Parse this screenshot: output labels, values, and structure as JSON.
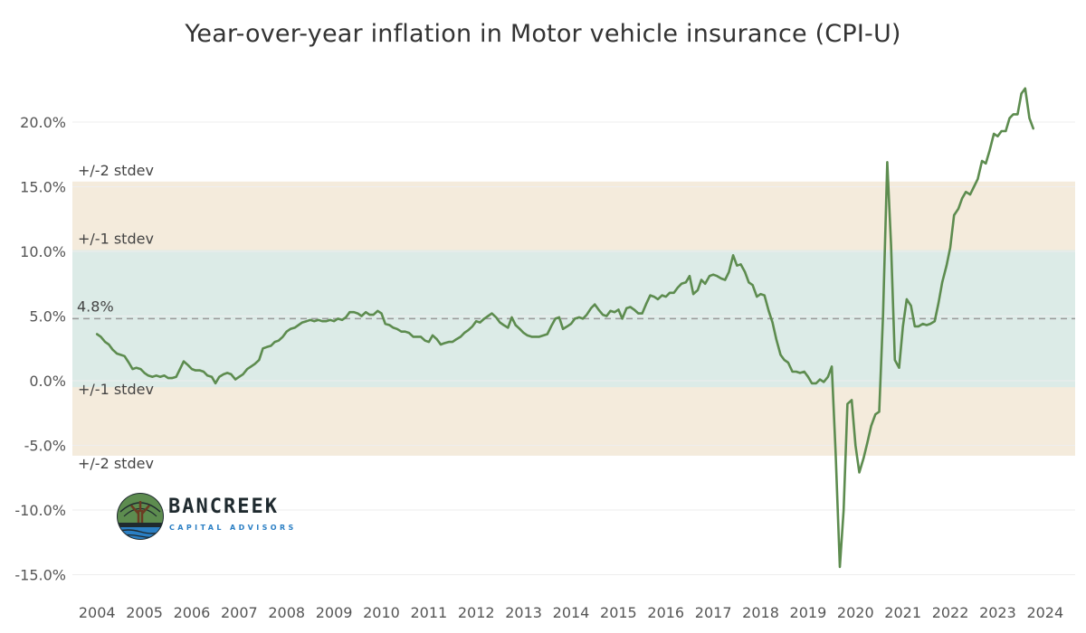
{
  "title": "Year-over-year inflation in Motor vehicle insurance (CPI-U)",
  "logo": {
    "name": "BANCREEK",
    "subtitle": "CAPITAL ADVISORS",
    "icon": "tree-river-icon"
  },
  "colors": {
    "line": "#5d8c4f",
    "band_1sd": "#dcebe7",
    "band_2sd": "#f4ebdc",
    "mean_line": "#999999",
    "grid": "#eeeeee"
  },
  "chart_data": {
    "type": "line",
    "title": "Year-over-year inflation in Motor vehicle insurance (CPI-U)",
    "xlabel": "",
    "ylabel": "",
    "ylim": [
      -16.5,
      24.5
    ],
    "xlim": [
      2004.0,
      2025.0
    ],
    "yticks": [
      {
        "value": 20,
        "label": "20.0%"
      },
      {
        "value": 15,
        "label": "15.0%"
      },
      {
        "value": 10,
        "label": "10.0%"
      },
      {
        "value": 5,
        "label": "5.0%"
      },
      {
        "value": 0,
        "label": "0.0%"
      },
      {
        "value": -5,
        "label": "-5.0%"
      },
      {
        "value": -10,
        "label": "-10.0%"
      },
      {
        "value": -15,
        "label": "-15.0%"
      }
    ],
    "xticks": [
      "2004",
      "2005",
      "2006",
      "2007",
      "2008",
      "2009",
      "2010",
      "2011",
      "2012",
      "2013",
      "2014",
      "2015",
      "2016",
      "2017",
      "2018",
      "2019",
      "2020",
      "2021",
      "2022",
      "2023",
      "2024"
    ],
    "mean": {
      "value": 4.8,
      "label": "4.8%"
    },
    "bands": [
      {
        "name": "2sd",
        "from": -5.8,
        "to": 15.4,
        "label_upper": "+/-2 stdev",
        "label_lower": "+/-2 stdev"
      },
      {
        "name": "1sd",
        "from": -0.5,
        "to": 10.1,
        "label_upper": "+/-1 stdev",
        "label_lower": "+/-1 stdev"
      }
    ],
    "grid": true,
    "series": [
      {
        "points": [
          [
            2004.5,
            3.6
          ],
          [
            2004.58,
            3.4
          ],
          [
            2004.67,
            3.0
          ],
          [
            2004.75,
            2.8
          ],
          [
            2004.83,
            2.4
          ],
          [
            2004.92,
            2.1
          ],
          [
            2005.0,
            2.0
          ],
          [
            2005.08,
            1.9
          ],
          [
            2005.17,
            1.4
          ],
          [
            2005.25,
            0.9
          ],
          [
            2005.33,
            1.0
          ],
          [
            2005.42,
            0.9
          ],
          [
            2005.5,
            0.6
          ],
          [
            2005.58,
            0.4
          ],
          [
            2005.67,
            0.3
          ],
          [
            2005.75,
            0.4
          ],
          [
            2005.83,
            0.3
          ],
          [
            2005.92,
            0.4
          ],
          [
            2006.0,
            0.2
          ],
          [
            2006.08,
            0.2
          ],
          [
            2006.17,
            0.3
          ],
          [
            2006.25,
            0.9
          ],
          [
            2006.33,
            1.5
          ],
          [
            2006.42,
            1.2
          ],
          [
            2006.5,
            0.9
          ],
          [
            2006.58,
            0.8
          ],
          [
            2006.67,
            0.8
          ],
          [
            2006.75,
            0.7
          ],
          [
            2006.83,
            0.4
          ],
          [
            2006.92,
            0.3
          ],
          [
            2007.0,
            -0.2
          ],
          [
            2007.08,
            0.3
          ],
          [
            2007.17,
            0.5
          ],
          [
            2007.25,
            0.6
          ],
          [
            2007.33,
            0.5
          ],
          [
            2007.42,
            0.1
          ],
          [
            2007.5,
            0.3
          ],
          [
            2007.58,
            0.5
          ],
          [
            2007.67,
            0.9
          ],
          [
            2007.75,
            1.1
          ],
          [
            2007.83,
            1.3
          ],
          [
            2007.92,
            1.6
          ],
          [
            2008.0,
            2.5
          ],
          [
            2008.08,
            2.6
          ],
          [
            2008.17,
            2.7
          ],
          [
            2008.25,
            3.0
          ],
          [
            2008.33,
            3.1
          ],
          [
            2008.42,
            3.4
          ],
          [
            2008.5,
            3.8
          ],
          [
            2008.58,
            4.0
          ],
          [
            2008.67,
            4.1
          ],
          [
            2008.75,
            4.3
          ],
          [
            2008.83,
            4.5
          ],
          [
            2008.92,
            4.6
          ],
          [
            2009.0,
            4.7
          ],
          [
            2009.08,
            4.6
          ],
          [
            2009.17,
            4.7
          ],
          [
            2009.25,
            4.6
          ],
          [
            2009.33,
            4.6
          ],
          [
            2009.42,
            4.7
          ],
          [
            2009.5,
            4.6
          ],
          [
            2009.58,
            4.8
          ],
          [
            2009.67,
            4.7
          ],
          [
            2009.75,
            4.9
          ],
          [
            2009.83,
            5.3
          ],
          [
            2009.92,
            5.3
          ],
          [
            2010.0,
            5.2
          ],
          [
            2010.08,
            5.0
          ],
          [
            2010.17,
            5.3
          ],
          [
            2010.25,
            5.1
          ],
          [
            2010.33,
            5.1
          ],
          [
            2010.42,
            5.4
          ],
          [
            2010.5,
            5.2
          ],
          [
            2010.58,
            4.4
          ],
          [
            2010.67,
            4.3
          ],
          [
            2010.75,
            4.1
          ],
          [
            2010.83,
            4.0
          ],
          [
            2010.92,
            3.8
          ],
          [
            2011.0,
            3.8
          ],
          [
            2011.08,
            3.7
          ],
          [
            2011.17,
            3.4
          ],
          [
            2011.25,
            3.4
          ],
          [
            2011.33,
            3.4
          ],
          [
            2011.42,
            3.1
          ],
          [
            2011.5,
            3.0
          ],
          [
            2011.58,
            3.5
          ],
          [
            2011.67,
            3.2
          ],
          [
            2011.75,
            2.8
          ],
          [
            2011.83,
            2.9
          ],
          [
            2011.92,
            3.0
          ],
          [
            2012.0,
            3.0
          ],
          [
            2012.08,
            3.2
          ],
          [
            2012.17,
            3.4
          ],
          [
            2012.25,
            3.7
          ],
          [
            2012.33,
            3.9
          ],
          [
            2012.42,
            4.2
          ],
          [
            2012.5,
            4.6
          ],
          [
            2012.58,
            4.5
          ],
          [
            2012.67,
            4.8
          ],
          [
            2012.75,
            5.0
          ],
          [
            2012.83,
            5.2
          ],
          [
            2012.92,
            4.9
          ],
          [
            2013.0,
            4.5
          ],
          [
            2013.08,
            4.3
          ],
          [
            2013.17,
            4.1
          ],
          [
            2013.25,
            4.9
          ],
          [
            2013.33,
            4.3
          ],
          [
            2013.42,
            4.0
          ],
          [
            2013.5,
            3.7
          ],
          [
            2013.58,
            3.5
          ],
          [
            2013.67,
            3.4
          ],
          [
            2013.75,
            3.4
          ],
          [
            2013.83,
            3.4
          ],
          [
            2013.92,
            3.5
          ],
          [
            2014.0,
            3.6
          ],
          [
            2014.08,
            4.2
          ],
          [
            2014.17,
            4.8
          ],
          [
            2014.25,
            4.9
          ],
          [
            2014.33,
            4.0
          ],
          [
            2014.42,
            4.2
          ],
          [
            2014.5,
            4.4
          ],
          [
            2014.58,
            4.8
          ],
          [
            2014.67,
            4.9
          ],
          [
            2014.75,
            4.8
          ],
          [
            2014.83,
            5.1
          ],
          [
            2014.92,
            5.6
          ],
          [
            2015.0,
            5.9
          ],
          [
            2015.08,
            5.5
          ],
          [
            2015.17,
            5.1
          ],
          [
            2015.25,
            5.0
          ],
          [
            2015.33,
            5.4
          ],
          [
            2015.42,
            5.3
          ],
          [
            2015.5,
            5.5
          ],
          [
            2015.58,
            4.8
          ],
          [
            2015.67,
            5.6
          ],
          [
            2015.75,
            5.7
          ],
          [
            2015.83,
            5.5
          ],
          [
            2015.92,
            5.2
          ],
          [
            2016.0,
            5.2
          ],
          [
            2016.08,
            5.9
          ],
          [
            2016.17,
            6.6
          ],
          [
            2016.25,
            6.5
          ],
          [
            2016.33,
            6.3
          ],
          [
            2016.42,
            6.6
          ],
          [
            2016.5,
            6.5
          ],
          [
            2016.58,
            6.8
          ],
          [
            2016.67,
            6.8
          ],
          [
            2016.75,
            7.2
          ],
          [
            2016.83,
            7.5
          ],
          [
            2016.92,
            7.6
          ],
          [
            2017.0,
            8.1
          ],
          [
            2017.08,
            6.7
          ],
          [
            2017.17,
            7.0
          ],
          [
            2017.25,
            7.8
          ],
          [
            2017.33,
            7.5
          ],
          [
            2017.42,
            8.1
          ],
          [
            2017.5,
            8.2
          ],
          [
            2017.58,
            8.1
          ],
          [
            2017.67,
            7.9
          ],
          [
            2017.75,
            7.8
          ],
          [
            2017.83,
            8.4
          ],
          [
            2017.92,
            9.7
          ],
          [
            2018.0,
            8.9
          ],
          [
            2018.08,
            9.0
          ],
          [
            2018.17,
            8.4
          ],
          [
            2018.25,
            7.6
          ],
          [
            2018.33,
            7.4
          ],
          [
            2018.42,
            6.5
          ],
          [
            2018.5,
            6.7
          ],
          [
            2018.58,
            6.6
          ],
          [
            2018.67,
            5.4
          ],
          [
            2018.75,
            4.5
          ],
          [
            2018.83,
            3.2
          ],
          [
            2018.92,
            2.0
          ],
          [
            2019.0,
            1.6
          ],
          [
            2019.08,
            1.4
          ],
          [
            2019.17,
            0.7
          ],
          [
            2019.25,
            0.7
          ],
          [
            2019.33,
            0.6
          ],
          [
            2019.42,
            0.7
          ],
          [
            2019.5,
            0.3
          ],
          [
            2019.58,
            -0.2
          ],
          [
            2019.67,
            -0.2
          ],
          [
            2019.75,
            0.1
          ],
          [
            2019.83,
            -0.1
          ],
          [
            2019.92,
            0.3
          ],
          [
            2020.0,
            1.1
          ],
          [
            2020.08,
            -5.5
          ],
          [
            2020.17,
            -14.4
          ],
          [
            2020.25,
            -10.0
          ],
          [
            2020.33,
            -1.8
          ],
          [
            2020.42,
            -1.5
          ],
          [
            2020.5,
            -5.0
          ],
          [
            2020.58,
            -7.1
          ],
          [
            2020.67,
            -6.0
          ],
          [
            2020.75,
            -4.8
          ],
          [
            2020.83,
            -3.5
          ],
          [
            2020.92,
            -2.6
          ],
          [
            2021.0,
            -2.4
          ],
          [
            2021.08,
            5.0
          ],
          [
            2021.17,
            16.9
          ],
          [
            2021.25,
            10.5
          ],
          [
            2021.33,
            1.6
          ],
          [
            2021.42,
            1.0
          ],
          [
            2021.5,
            4.2
          ],
          [
            2021.58,
            6.3
          ],
          [
            2021.67,
            5.8
          ],
          [
            2021.75,
            4.2
          ],
          [
            2021.83,
            4.2
          ],
          [
            2021.92,
            4.4
          ],
          [
            2022.0,
            4.3
          ],
          [
            2022.08,
            4.4
          ],
          [
            2022.17,
            4.6
          ],
          [
            2022.25,
            6.0
          ],
          [
            2022.33,
            7.6
          ],
          [
            2022.42,
            8.9
          ],
          [
            2022.5,
            10.3
          ],
          [
            2022.58,
            12.8
          ],
          [
            2022.67,
            13.3
          ],
          [
            2022.75,
            14.1
          ],
          [
            2022.83,
            14.6
          ],
          [
            2022.92,
            14.4
          ],
          [
            2023.0,
            15.0
          ],
          [
            2023.08,
            15.6
          ],
          [
            2023.17,
            17.0
          ],
          [
            2023.25,
            16.8
          ],
          [
            2023.33,
            17.8
          ],
          [
            2023.42,
            19.1
          ],
          [
            2023.5,
            18.9
          ],
          [
            2023.58,
            19.3
          ],
          [
            2023.67,
            19.3
          ],
          [
            2023.75,
            20.3
          ],
          [
            2023.83,
            20.6
          ],
          [
            2023.92,
            20.6
          ],
          [
            2024.0,
            22.2
          ],
          [
            2024.08,
            22.6
          ],
          [
            2024.17,
            20.3
          ],
          [
            2024.25,
            19.5
          ]
        ]
      }
    ]
  }
}
